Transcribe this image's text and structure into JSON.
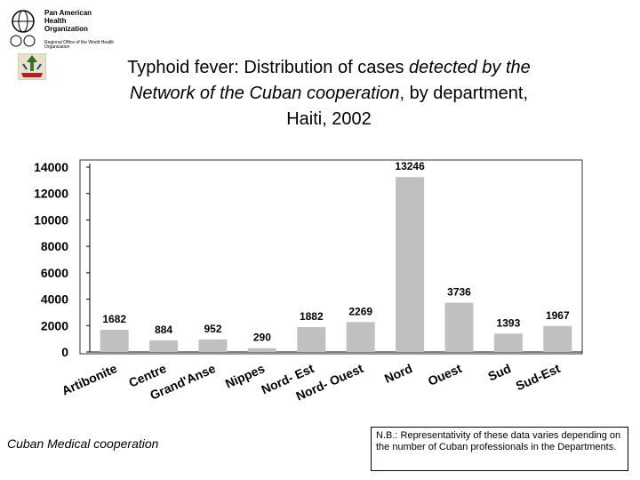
{
  "logo": {
    "name_line1": "Pan American",
    "name_line2": "Health",
    "name_line3": "Organization",
    "sub": "Regional Office of the World Health Organization"
  },
  "title": {
    "part1": "Typhoid fever: Distribution of cases ",
    "part2": "detected by the",
    "part3": "Network of the Cuban cooperation",
    "part4": ", by department,",
    "part5": "Haiti, 2002"
  },
  "chart_data": {
    "type": "bar",
    "title": "Typhoid fever: Distribution of cases detected by the Network of the Cuban cooperation, by department, Haiti, 2002",
    "categories": [
      "Artibonite",
      "Centre",
      "Grand'Anse",
      "Nippes",
      "Nord- Est",
      "Nord- Ouest",
      "Nord",
      "Ouest",
      "Sud",
      "Sud-Est"
    ],
    "values": [
      1682,
      884,
      952,
      290,
      1882,
      2269,
      13246,
      3736,
      1393,
      1967
    ],
    "ylim": [
      0,
      14000
    ],
    "yticks": [
      0,
      2000,
      4000,
      6000,
      8000,
      10000,
      12000,
      14000
    ],
    "xlabel": "",
    "ylabel": "",
    "bar_color": "#c0c0c0"
  },
  "footer": {
    "source": "Cuban Medical cooperation",
    "note": "N.B.: Representativity of these data varies depending on the number of Cuban professionals in the Departments."
  }
}
